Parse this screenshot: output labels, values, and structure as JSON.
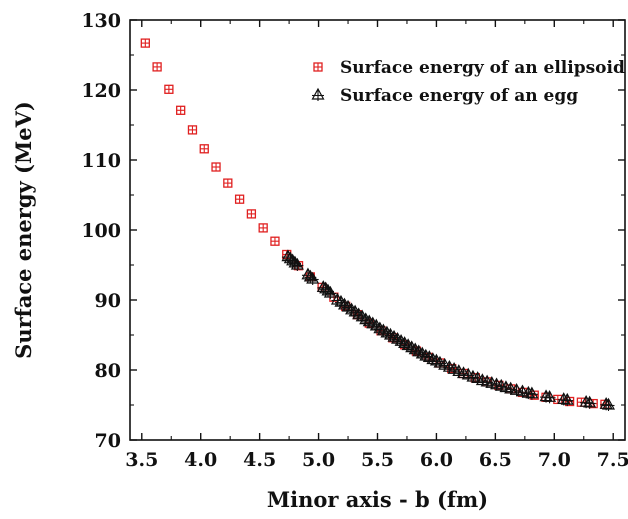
{
  "chart_data": {
    "type": "scatter",
    "title": "",
    "xlabel": "Minor axis - b (fm)",
    "ylabel": "Surface energy (MeV)",
    "xlim": [
      3.4,
      7.6
    ],
    "ylim": [
      70,
      130
    ],
    "x_ticks": [
      "3.5",
      "4.0",
      "4.5",
      "5.0",
      "5.5",
      "6.0",
      "6.5",
      "7.0",
      "7.5"
    ],
    "y_ticks": [
      "70",
      "80",
      "90",
      "100",
      "110",
      "120",
      "130"
    ],
    "grid": false,
    "legend_position": "top-right",
    "series": [
      {
        "name": "Surface energy of an ellipsoid",
        "marker": "square-plus",
        "color": "#e02020",
        "points": [
          [
            3.53,
            126.7
          ],
          [
            3.63,
            123.3
          ],
          [
            3.73,
            120.1
          ],
          [
            3.83,
            117.1
          ],
          [
            3.93,
            114.3
          ],
          [
            4.03,
            111.6
          ],
          [
            4.13,
            109.0
          ],
          [
            4.23,
            106.7
          ],
          [
            4.33,
            104.4
          ],
          [
            4.43,
            102.3
          ],
          [
            4.53,
            100.3
          ],
          [
            4.63,
            98.4
          ],
          [
            4.73,
            96.5
          ],
          [
            4.83,
            94.9
          ],
          [
            4.93,
            93.3
          ],
          [
            5.03,
            91.8
          ],
          [
            5.13,
            90.4
          ],
          [
            5.23,
            89.1
          ],
          [
            5.33,
            87.9
          ],
          [
            5.43,
            86.7
          ],
          [
            5.53,
            85.6
          ],
          [
            5.63,
            84.6
          ],
          [
            5.73,
            83.6
          ],
          [
            5.83,
            82.7
          ],
          [
            5.93,
            81.8
          ],
          [
            6.03,
            81.0
          ],
          [
            6.13,
            80.2
          ],
          [
            6.23,
            79.5
          ],
          [
            6.33,
            78.9
          ],
          [
            6.43,
            78.3
          ],
          [
            6.53,
            77.8
          ],
          [
            6.63,
            77.3
          ],
          [
            6.73,
            76.8
          ],
          [
            6.83,
            76.4
          ],
          [
            6.93,
            76.1
          ],
          [
            7.03,
            75.8
          ],
          [
            7.13,
            75.5
          ],
          [
            7.23,
            75.4
          ],
          [
            7.33,
            75.2
          ],
          [
            7.43,
            75.1
          ]
        ]
      },
      {
        "name": "Surface energy of an egg",
        "marker": "triangle-plus",
        "color": "#111111",
        "points": [
          [
            4.74,
            96.2
          ],
          [
            4.76,
            95.9
          ],
          [
            4.78,
            95.6
          ],
          [
            4.8,
            95.3
          ],
          [
            4.82,
            95.0
          ],
          [
            4.91,
            93.6
          ],
          [
            4.93,
            93.3
          ],
          [
            4.95,
            93.0
          ],
          [
            5.04,
            91.8
          ],
          [
            5.06,
            91.6
          ],
          [
            5.08,
            91.3
          ],
          [
            5.1,
            91.0
          ],
          [
            5.16,
            90.0
          ],
          [
            5.19,
            89.7
          ],
          [
            5.22,
            89.3
          ],
          [
            5.25,
            89.0
          ],
          [
            5.28,
            88.6
          ],
          [
            5.31,
            88.3
          ],
          [
            5.34,
            87.9
          ],
          [
            5.37,
            87.6
          ],
          [
            5.4,
            87.2
          ],
          [
            5.43,
            86.9
          ],
          [
            5.46,
            86.6
          ],
          [
            5.49,
            86.3
          ],
          [
            5.52,
            85.9
          ],
          [
            5.55,
            85.6
          ],
          [
            5.58,
            85.3
          ],
          [
            5.61,
            85.0
          ],
          [
            5.64,
            84.7
          ],
          [
            5.67,
            84.4
          ],
          [
            5.7,
            84.1
          ],
          [
            5.73,
            83.8
          ],
          [
            5.76,
            83.5
          ],
          [
            5.79,
            83.2
          ],
          [
            5.82,
            82.9
          ],
          [
            5.85,
            82.6
          ],
          [
            5.88,
            82.3
          ],
          [
            5.91,
            82.0
          ],
          [
            5.94,
            81.8
          ],
          [
            5.97,
            81.5
          ],
          [
            6.0,
            81.3
          ],
          [
            6.03,
            81.0
          ],
          [
            6.07,
            80.7
          ],
          [
            6.11,
            80.4
          ],
          [
            6.15,
            80.1
          ],
          [
            6.19,
            79.8
          ],
          [
            6.23,
            79.5
          ],
          [
            6.27,
            79.3
          ],
          [
            6.31,
            79.0
          ],
          [
            6.35,
            78.8
          ],
          [
            6.39,
            78.5
          ],
          [
            6.43,
            78.3
          ],
          [
            6.47,
            78.1
          ],
          [
            6.51,
            77.9
          ],
          [
            6.55,
            77.7
          ],
          [
            6.59,
            77.5
          ],
          [
            6.63,
            77.3
          ],
          [
            6.68,
            77.1
          ],
          [
            6.73,
            76.9
          ],
          [
            6.78,
            76.7
          ],
          [
            6.81,
            76.6
          ],
          [
            6.93,
            76.2
          ],
          [
            6.96,
            76.1
          ],
          [
            7.08,
            75.8
          ],
          [
            7.11,
            75.7
          ],
          [
            7.27,
            75.4
          ],
          [
            7.3,
            75.3
          ],
          [
            7.44,
            75.1
          ],
          [
            7.46,
            75.0
          ]
        ]
      }
    ]
  }
}
